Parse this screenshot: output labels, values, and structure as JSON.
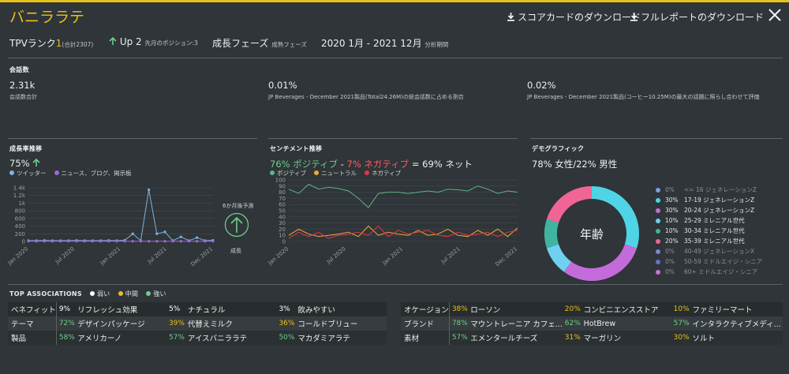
{
  "header": {
    "title": "バニララテ",
    "download_scorecard": "スコアカードのダウンロード",
    "download_full_report": "フルレポートのダウンロード"
  },
  "summary": {
    "tpv_label": "TPVランク",
    "tpv_rank": "1",
    "tpv_total": "(合計2307)",
    "up_label": "Up 2",
    "up_sub": "先月のポジション:3",
    "phase": "成長フェーズ",
    "phase_sub": "成熟フェーズ",
    "period": "2020 1月 - 2021 12月",
    "period_sub": "分析期間"
  },
  "conversations": {
    "section_label": "会話数",
    "total_value": "2.31k",
    "total_label": "会話数合計",
    "share_value": "0.01%",
    "share_label": "JP Beverages - December 2021製品(Total24.26M)の総会話数に占める割合",
    "max_value": "0.02%",
    "max_label": "JP Beverages - December 2021製品(コーヒー10.25M)の最大の話題に照らし合わせて評価"
  },
  "growth": {
    "section_label": "成長率推移",
    "value": "75%",
    "legend": [
      "ツイッター",
      "ニュース、ブログ、掲示板"
    ],
    "forecast_label": "6か月後予測",
    "forecast_state": "成長"
  },
  "sentiment": {
    "section_label": "センチメント推移",
    "positive": "76% ポジティブ",
    "dash": " - ",
    "negative": "7% ネガティブ",
    "net": " = 69% ネット",
    "legend": [
      "ポジティブ",
      "ニュートラル",
      "ネガティブ"
    ]
  },
  "demographics": {
    "section_label": "デモグラフィック",
    "headline": "78% 女性/22% 男性",
    "center_label": "年齢",
    "rows": [
      {
        "pct": "0%",
        "label": "<= 16 ジェネレーションZ",
        "color": "#7e9fd8",
        "dim": true
      },
      {
        "pct": "30%",
        "label": "17-19 ジェネレーションZ",
        "color": "#4fd4e6",
        "dim": false
      },
      {
        "pct": "30%",
        "label": "20-24 ジェネレーションZ",
        "color": "#c46bdc",
        "dim": false
      },
      {
        "pct": "10%",
        "label": "25-29 ミレニアル世代",
        "color": "#6fd0f0",
        "dim": false
      },
      {
        "pct": "10%",
        "label": "30-34 ミレニアル世代",
        "color": "#3fb5a0",
        "dim": false
      },
      {
        "pct": "20%",
        "label": "35-39 ミレニアル世代",
        "color": "#f06595",
        "dim": false
      },
      {
        "pct": "0%",
        "label": "40-49 ジェネレーションX",
        "color": "#7e86d8",
        "dim": true
      },
      {
        "pct": "0%",
        "label": "50-59 ミドルエイジ・シニア",
        "color": "#5a78c8",
        "dim": true
      },
      {
        "pct": "0%",
        "label": "60+ ミドルエイジ・シニア",
        "color": "#d070d8",
        "dim": true
      }
    ]
  },
  "associations": {
    "section_label": "TOP ASSOCIATIONS",
    "legend": [
      {
        "label": "弱い",
        "color": "#ffffff"
      },
      {
        "label": "中間",
        "color": "#e8c21c"
      },
      {
        "label": "強い",
        "color": "#6fce8a"
      }
    ],
    "left": [
      {
        "cat": "ベネフィット",
        "items": [
          {
            "pct": "9%",
            "name": "リフレッシュ効果",
            "color": "#ffffff"
          },
          {
            "pct": "5%",
            "name": "ナチュラル",
            "color": "#ffffff"
          },
          {
            "pct": "3%",
            "name": "飲みやすい",
            "color": "#ffffff"
          }
        ]
      },
      {
        "cat": "テーマ",
        "items": [
          {
            "pct": "72%",
            "name": "デザインパッケージ",
            "color": "#6fce8a"
          },
          {
            "pct": "39%",
            "name": "代替えミルク",
            "color": "#e8c21c"
          },
          {
            "pct": "36%",
            "name": "コールドブリュー",
            "color": "#e8c21c"
          }
        ]
      },
      {
        "cat": "製品",
        "items": [
          {
            "pct": "58%",
            "name": "アメリカーノ",
            "color": "#6fce8a"
          },
          {
            "pct": "57%",
            "name": "アイスバニララテ",
            "color": "#6fce8a"
          },
          {
            "pct": "50%",
            "name": "マカダミアラテ",
            "color": "#6fce8a"
          }
        ]
      }
    ],
    "right": [
      {
        "cat": "オケージョン",
        "items": [
          {
            "pct": "38%",
            "name": "ローソン",
            "color": "#e8c21c"
          },
          {
            "pct": "20%",
            "name": "コンビニエンスストア",
            "color": "#e8c21c"
          },
          {
            "pct": "10%",
            "name": "ファミリーマート",
            "color": "#e8c21c"
          }
        ]
      },
      {
        "cat": "ブランド",
        "items": [
          {
            "pct": "78%",
            "name": "マウントレーニア カフェ...",
            "color": "#6fce8a"
          },
          {
            "pct": "62%",
            "name": "HotBrew",
            "color": "#6fce8a"
          },
          {
            "pct": "57%",
            "name": "インタラクティブメディ...",
            "color": "#6fce8a"
          }
        ]
      },
      {
        "cat": "素材",
        "items": [
          {
            "pct": "57%",
            "name": "エメンタールチーズ",
            "color": "#6fce8a"
          },
          {
            "pct": "31%",
            "name": "マーガリン",
            "color": "#e8c21c"
          },
          {
            "pct": "30%",
            "name": "ソルト",
            "color": "#e8c21c"
          }
        ]
      }
    ]
  },
  "chart_data": [
    {
      "type": "line",
      "name": "growth",
      "yticks": [
        "0",
        "200",
        "400",
        "600",
        "800",
        "1k",
        "1.2k",
        "1.4k"
      ],
      "ylim": [
        0,
        1400
      ],
      "xticks": [
        "Jan 2020",
        "Jul 2020",
        "Jan 2021",
        "Jul 2021",
        "Dec 2021"
      ],
      "series": [
        {
          "name": "ツイッター",
          "color": "#7fb3e0",
          "values": [
            20,
            20,
            25,
            20,
            20,
            20,
            25,
            20,
            20,
            20,
            25,
            20,
            30,
            200,
            20,
            1350,
            200,
            250,
            20,
            120,
            20,
            100,
            20,
            30
          ]
        },
        {
          "name": "ニュース、ブログ、掲示板",
          "color": "#9a6ad4",
          "values": [
            5,
            5,
            5,
            5,
            5,
            5,
            5,
            5,
            5,
            5,
            5,
            5,
            5,
            5,
            5,
            5,
            5,
            5,
            5,
            5,
            5,
            5,
            5,
            5
          ]
        }
      ]
    },
    {
      "type": "line",
      "name": "sentiment",
      "yticks": [
        "0",
        "10",
        "20",
        "30",
        "40",
        "50",
        "60",
        "70",
        "80",
        "90",
        "100"
      ],
      "ylim": [
        0,
        100
      ],
      "xticks": [
        "Jan 2020",
        "Jul 2020",
        "Jan 2021",
        "Jul 2021",
        "Dec 2021"
      ],
      "series": [
        {
          "name": "ポジティブ",
          "color": "#5fb386",
          "values": [
            85,
            78,
            93,
            85,
            88,
            86,
            82,
            70,
            55,
            78,
            80,
            80,
            78,
            80,
            82,
            80,
            85,
            84,
            82,
            90,
            85,
            78,
            82,
            80
          ]
        },
        {
          "name": "ニュートラル",
          "color": "#e8a83a",
          "values": [
            10,
            20,
            12,
            8,
            10,
            12,
            15,
            8,
            25,
            10,
            15,
            12,
            10,
            18,
            10,
            12,
            20,
            10,
            8,
            18,
            10,
            20,
            8,
            22
          ]
        },
        {
          "name": "ネガティブ",
          "color": "#e8334a",
          "values": [
            5,
            15,
            8,
            15,
            5,
            10,
            12,
            15,
            10,
            25,
            8,
            18,
            12,
            15,
            18,
            10,
            8,
            15,
            10,
            12,
            15,
            8,
            15,
            18
          ]
        }
      ]
    },
    {
      "type": "pie",
      "name": "age-donut",
      "values": [
        30,
        30,
        10,
        10,
        20
      ],
      "colors": [
        "#4fd4e6",
        "#c46bdc",
        "#6fd0f0",
        "#3fb5a0",
        "#f06595"
      ]
    }
  ]
}
